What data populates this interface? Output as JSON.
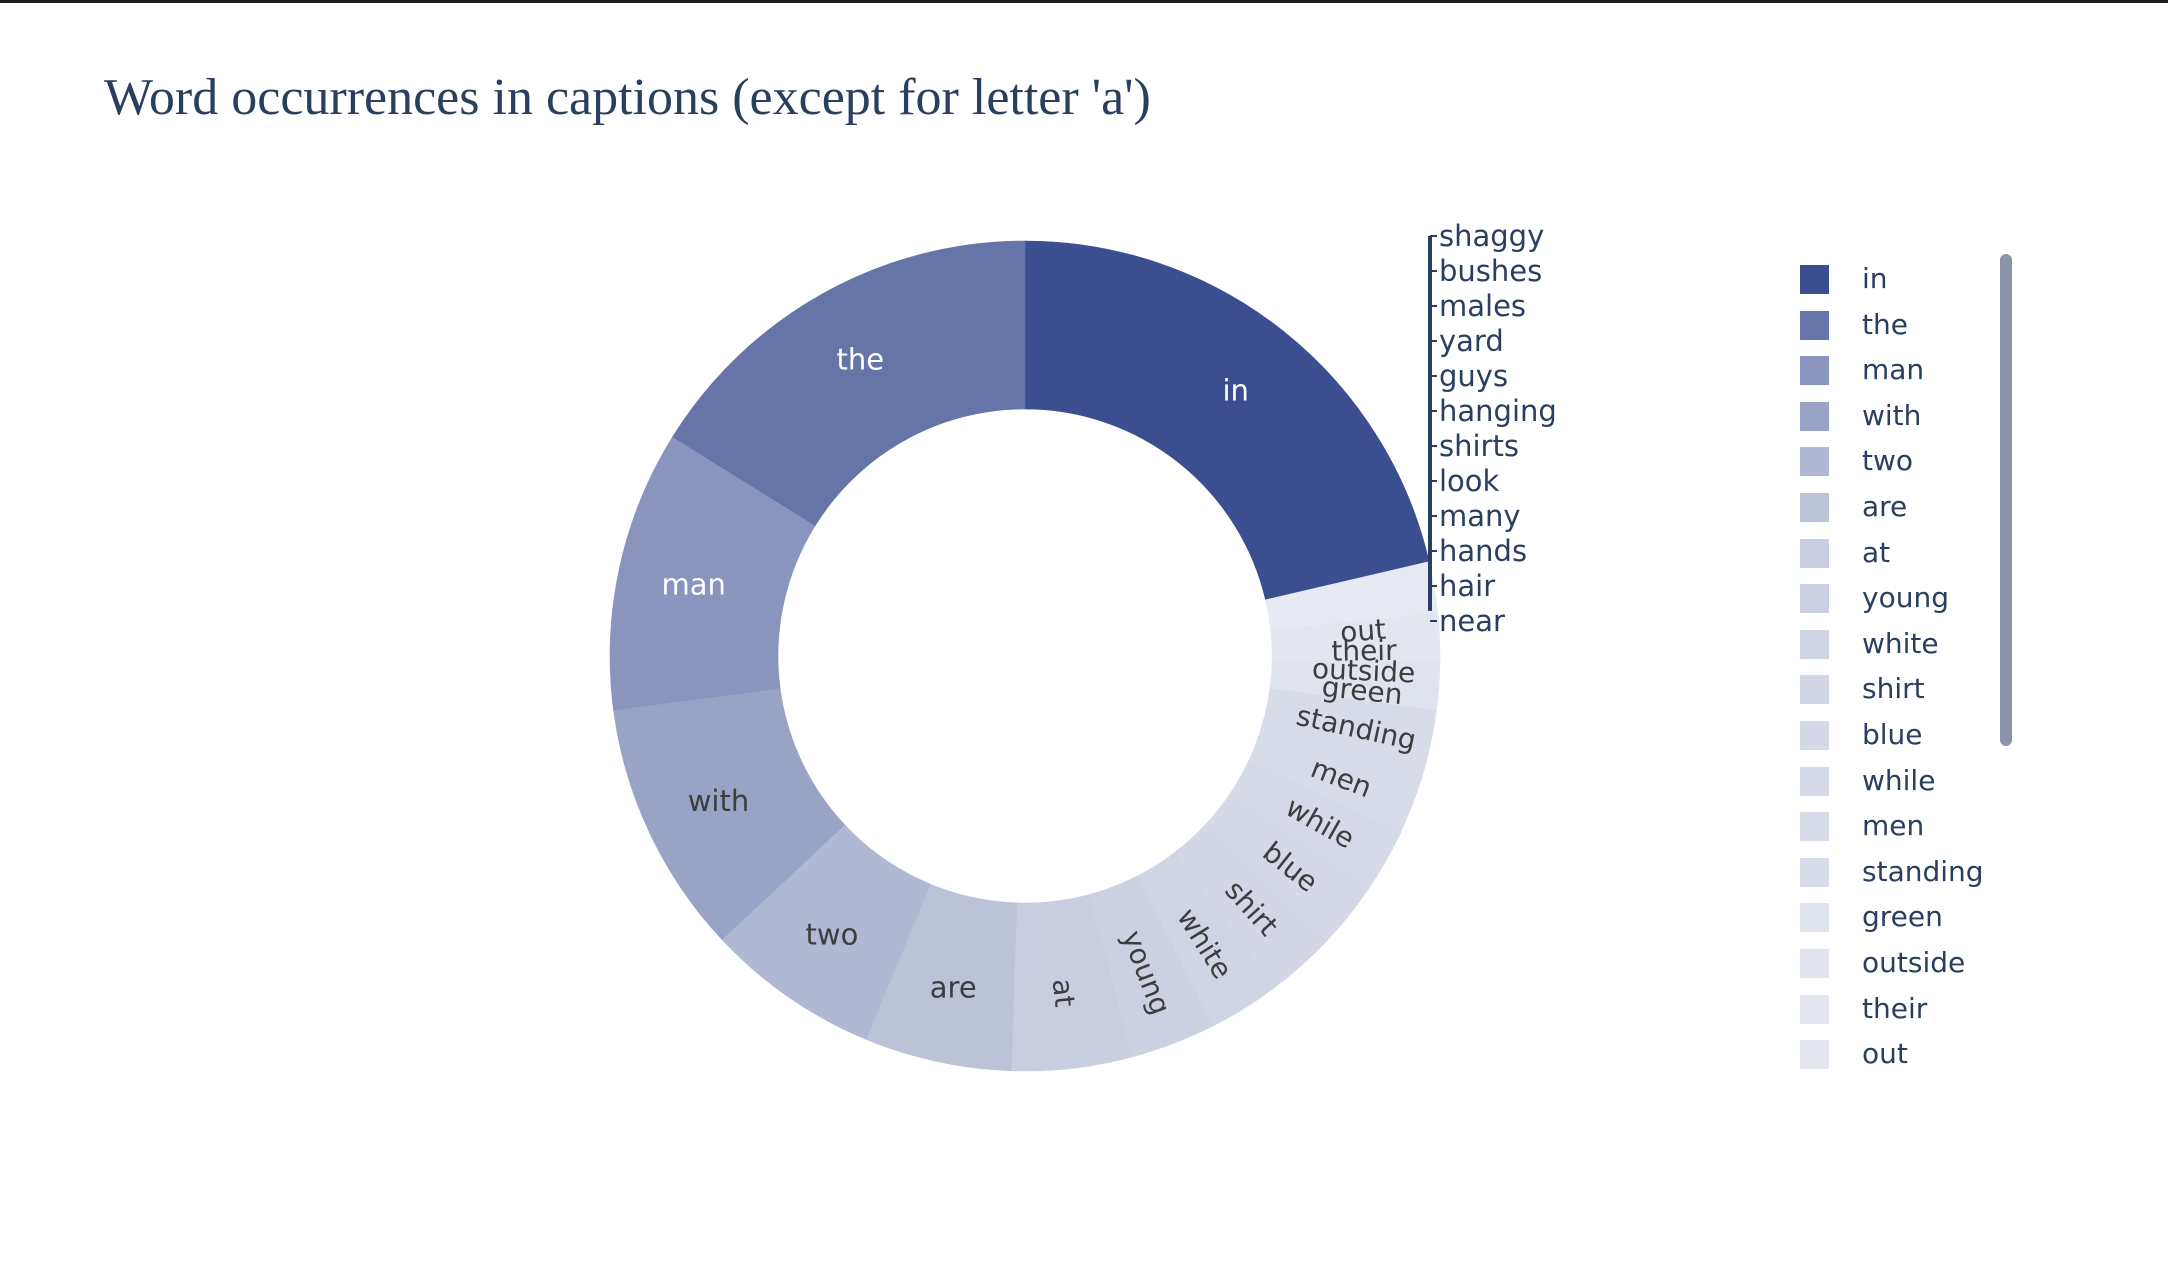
{
  "chart_data": {
    "type": "pie",
    "hole": true,
    "title": "Word occurrences in captions (except for letter 'a')",
    "base_color": "#3a4e90",
    "text_dark": "#3d3d3d",
    "text_light": "#ffffff",
    "slices": [
      {
        "label": "in",
        "value": 20.5,
        "shade": 0.0
      },
      {
        "label": "shaggy",
        "value": 0.16,
        "shade": 0.88
      },
      {
        "label": "bushes",
        "value": 0.16,
        "shade": 0.88
      },
      {
        "label": "males",
        "value": 0.16,
        "shade": 0.88
      },
      {
        "label": "yard",
        "value": 0.16,
        "shade": 0.88
      },
      {
        "label": "guys",
        "value": 0.16,
        "shade": 0.88
      },
      {
        "label": "hanging",
        "value": 0.16,
        "shade": 0.88
      },
      {
        "label": "shirts",
        "value": 0.16,
        "shade": 0.88
      },
      {
        "label": "look",
        "value": 0.16,
        "shade": 0.88
      },
      {
        "label": "many",
        "value": 0.16,
        "shade": 0.88
      },
      {
        "label": "hands",
        "value": 0.16,
        "shade": 0.88
      },
      {
        "label": "hair",
        "value": 0.16,
        "shade": 0.88
      },
      {
        "label": "near",
        "value": 0.16,
        "shade": 0.88
      },
      {
        "label": "out",
        "value": 0.9,
        "shade": 0.86
      },
      {
        "label": "their",
        "value": 0.9,
        "shade": 0.86
      },
      {
        "label": "outside",
        "value": 0.9,
        "shade": 0.85
      },
      {
        "label": "green",
        "value": 0.9,
        "shade": 0.84
      },
      {
        "label": "standing",
        "value": 2.5,
        "shade": 0.8
      },
      {
        "label": "men",
        "value": 2.2,
        "shade": 0.8
      },
      {
        "label": "while",
        "value": 2.3,
        "shade": 0.79
      },
      {
        "label": "blue",
        "value": 2.5,
        "shade": 0.78
      },
      {
        "label": "shirt",
        "value": 2.6,
        "shade": 0.77
      },
      {
        "label": "white",
        "value": 2.7,
        "shade": 0.76
      },
      {
        "label": "young",
        "value": 3.2,
        "shade": 0.74
      },
      {
        "label": "at",
        "value": 4.5,
        "shade": 0.72
      },
      {
        "label": "are",
        "value": 5.5,
        "shade": 0.66
      },
      {
        "label": "two",
        "value": 6.5,
        "shade": 0.6
      },
      {
        "label": "with",
        "value": 9.5,
        "shade": 0.48
      },
      {
        "label": "man",
        "value": 10.5,
        "shade": 0.4
      },
      {
        "label": "the",
        "value": 15.5,
        "shade": 0.22
      }
    ],
    "legend": [
      "in",
      "the",
      "man",
      "with",
      "two",
      "are",
      "at",
      "young",
      "white",
      "shirt",
      "blue",
      "while",
      "men",
      "standing",
      "green",
      "outside",
      "their",
      "out"
    ]
  }
}
